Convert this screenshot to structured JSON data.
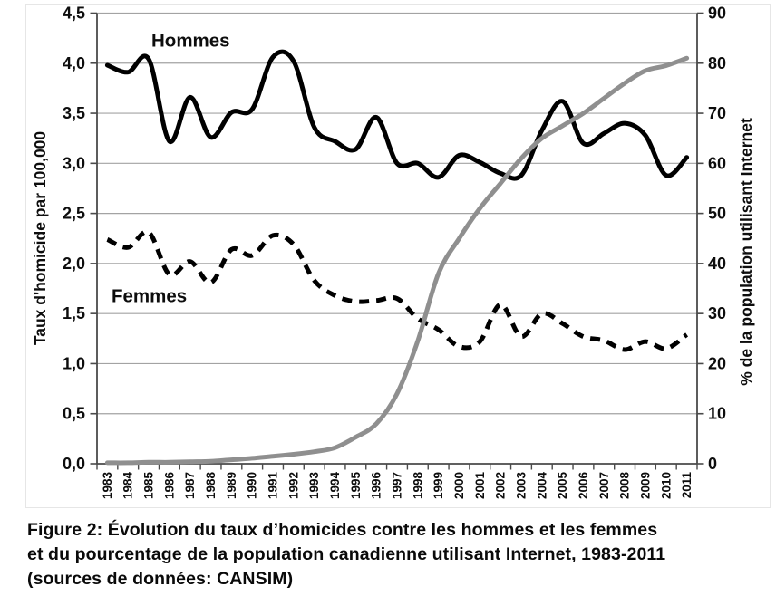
{
  "figure": {
    "caption_lines": [
      "Figure 2: Évolution du taux d’homicides contre les hommes et les femmes",
      "et du pourcentage de la population canadienne utilisant Internet, 1983-2011",
      "(sources de données: CANSIM)"
    ]
  },
  "colors": {
    "line_black": "#000000",
    "line_gray": "#8f8f8f",
    "grid": "#a3a3a3",
    "axis": "#4a4a4a",
    "text": "#0d0d0d"
  },
  "chart_data": {
    "type": "line",
    "title": "",
    "xlabel": "",
    "grid": true,
    "legend_position": "inline-annotations",
    "x": [
      1983,
      1984,
      1985,
      1986,
      1987,
      1988,
      1989,
      1990,
      1991,
      1992,
      1993,
      1994,
      1995,
      1996,
      1997,
      1998,
      1999,
      2000,
      2001,
      2002,
      2003,
      2004,
      2005,
      2006,
      2007,
      2008,
      2009,
      2010,
      2011
    ],
    "x_axis": {
      "tick_labels": [
        "1983",
        "1984",
        "1985",
        "1986",
        "1987",
        "1988",
        "1989",
        "1990",
        "1991",
        "1992",
        "1993",
        "1994",
        "1995",
        "1996",
        "1997",
        "1998",
        "1999",
        "2000",
        "2001",
        "2002",
        "2003",
        "2004",
        "2005",
        "2006",
        "2007",
        "2008",
        "2009",
        "2010",
        "2011"
      ]
    },
    "left_axis": {
      "label": "Taux d'homicide par 100,000",
      "min": 0,
      "max": 4.5,
      "step": 0.5,
      "tick_labels": [
        "0,0",
        "0,5",
        "1,0",
        "1,5",
        "2,0",
        "2,5",
        "3,0",
        "3,5",
        "4,0",
        "4,5"
      ]
    },
    "right_axis": {
      "label": "% de la population  utilisant Internet",
      "min": 0,
      "max": 90,
      "step": 10,
      "tick_labels": [
        "0",
        "10",
        "20",
        "30",
        "40",
        "50",
        "60",
        "70",
        "80",
        "90"
      ]
    },
    "series": [
      {
        "name": "Hommes",
        "axis": "left",
        "line_style": "solid",
        "color": "#000000",
        "values": [
          3.98,
          3.91,
          4.04,
          3.22,
          3.66,
          3.26,
          3.51,
          3.54,
          4.06,
          4.02,
          3.36,
          3.22,
          3.14,
          3.46,
          3.0,
          3.0,
          2.86,
          3.08,
          3.01,
          2.9,
          2.88,
          3.33,
          3.62,
          3.2,
          3.3,
          3.4,
          3.28,
          2.88,
          3.06
        ]
      },
      {
        "name": "Femmes",
        "axis": "left",
        "line_style": "dashed",
        "color": "#000000",
        "values": [
          2.24,
          2.16,
          2.31,
          1.89,
          2.02,
          1.81,
          2.14,
          2.08,
          2.28,
          2.19,
          1.83,
          1.68,
          1.62,
          1.63,
          1.65,
          1.45,
          1.34,
          1.17,
          1.22,
          1.59,
          1.27,
          1.5,
          1.4,
          1.27,
          1.23,
          1.14,
          1.22,
          1.15,
          1.29
        ]
      },
      {
        "name": "Internet",
        "axis": "right",
        "line_style": "solid",
        "color": "#8f8f8f",
        "values": [
          0.2,
          0.2,
          0.3,
          0.3,
          0.4,
          0.5,
          0.8,
          1.1,
          1.5,
          1.9,
          2.4,
          3.2,
          5.3,
          8.0,
          14.0,
          24.5,
          38.0,
          45.0,
          51.0,
          56.0,
          61.0,
          65.0,
          67.5,
          70.0,
          73.0,
          76.0,
          78.5,
          79.5,
          81.0
        ]
      }
    ],
    "annotations": [
      {
        "text": "Hommes"
      },
      {
        "text": "Femmes"
      }
    ]
  }
}
